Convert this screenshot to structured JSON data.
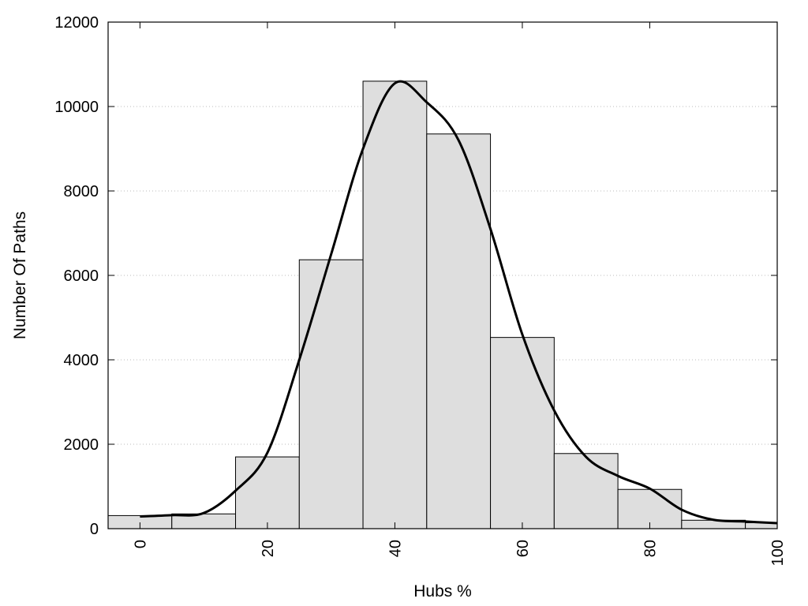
{
  "chart_data": {
    "type": "bar",
    "title": "",
    "xlabel": "Hubs %",
    "ylabel": "Number Of Paths",
    "xlim": [
      -5,
      100
    ],
    "ylim": [
      0,
      12000
    ],
    "x_ticks": [
      0,
      20,
      40,
      60,
      80,
      100
    ],
    "y_ticks": [
      0,
      2000,
      4000,
      6000,
      8000,
      10000,
      12000
    ],
    "grid": "horizontal-dotted",
    "bar_color": "#dedede",
    "bars": [
      {
        "x": 0,
        "value": 310
      },
      {
        "x": 10,
        "value": 350
      },
      {
        "x": 20,
        "value": 1700
      },
      {
        "x": 30,
        "value": 6370
      },
      {
        "x": 40,
        "value": 10600
      },
      {
        "x": 50,
        "value": 9350
      },
      {
        "x": 60,
        "value": 4530
      },
      {
        "x": 70,
        "value": 1780
      },
      {
        "x": 80,
        "value": 930
      },
      {
        "x": 90,
        "value": 200
      },
      {
        "x": 100,
        "value": 140
      }
    ],
    "bar_width": 10,
    "curve": {
      "x": [
        0,
        5,
        10,
        15,
        20,
        25,
        30,
        35,
        40,
        45,
        50,
        55,
        60,
        65,
        70,
        75,
        80,
        85,
        90,
        95,
        100
      ],
      "y": [
        290,
        320,
        370,
        900,
        1800,
        4000,
        6500,
        9000,
        10550,
        10100,
        9200,
        7100,
        4600,
        2800,
        1700,
        1250,
        950,
        450,
        210,
        170,
        130
      ]
    }
  }
}
